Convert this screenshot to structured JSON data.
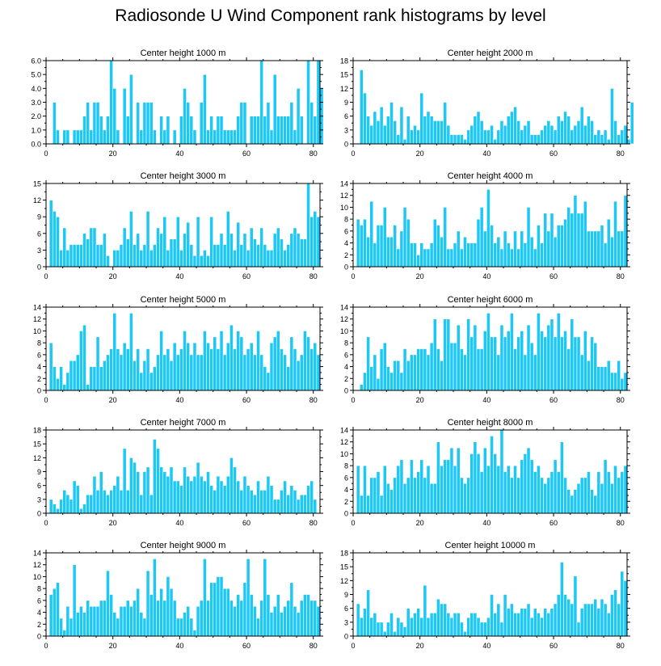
{
  "title": "Radiosonde U Wind Component rank histograms by level",
  "colors": {
    "bar": "#1ec8f5",
    "bar_edge": "#ffffff",
    "axis": "#000000",
    "background": "#ffffff"
  },
  "chart_data": [
    {
      "type": "bar",
      "title": "Center height 1000 m",
      "xlabel": "",
      "ylabel": "",
      "xlim": [
        0,
        82
      ],
      "xticks": [
        0,
        20,
        40,
        60,
        80
      ],
      "ylim": [
        0,
        6
      ],
      "yticks": [
        0,
        1,
        2,
        3,
        4,
        5,
        6
      ],
      "ytick_labels": [
        "0.0",
        "1.0",
        "2.0",
        "3.0",
        "4.0",
        "5.0",
        "6.0"
      ],
      "values": [
        0,
        0,
        3,
        1,
        0,
        1,
        1,
        0,
        1,
        1,
        1,
        2,
        3,
        1,
        3,
        3,
        2,
        1,
        2,
        6,
        4,
        1,
        0,
        4,
        2,
        5,
        0,
        3,
        1,
        3,
        3,
        3,
        1,
        0,
        2,
        1,
        2,
        0,
        1,
        0,
        2,
        4,
        3,
        2,
        1,
        0,
        3,
        5,
        1,
        2,
        1,
        2,
        2,
        1,
        1,
        1,
        1,
        2,
        3,
        3,
        0,
        2,
        2,
        2,
        6,
        2,
        3,
        1,
        5,
        2,
        2,
        2,
        2,
        3,
        1,
        4,
        2,
        0,
        6,
        3,
        2,
        6,
        4
      ]
    },
    {
      "type": "bar",
      "title": "Center height 2000 m",
      "xlabel": "",
      "ylabel": "",
      "xlim": [
        0,
        82
      ],
      "xticks": [
        0,
        20,
        40,
        60,
        80
      ],
      "ylim": [
        0,
        18
      ],
      "yticks": [
        0,
        3,
        6,
        9,
        12,
        15,
        18
      ],
      "ytick_labels": [
        "0",
        "3",
        "6",
        "9",
        "12",
        "15",
        "18"
      ],
      "values": [
        0,
        0,
        16,
        11,
        6,
        4,
        7,
        5,
        8,
        4,
        6,
        9,
        5,
        2,
        8,
        1,
        6,
        3,
        4,
        3,
        11,
        6,
        7,
        6,
        5,
        5,
        5,
        9,
        4,
        2,
        2,
        2,
        2,
        1,
        3,
        4,
        6,
        7,
        5,
        3,
        3,
        4,
        1,
        3,
        5,
        4,
        6,
        7,
        8,
        5,
        3,
        4,
        5,
        2,
        2,
        2,
        3,
        4,
        5,
        4,
        3,
        6,
        5,
        7,
        6,
        3,
        4,
        5,
        8,
        4,
        6,
        5,
        2,
        3,
        2,
        3,
        1,
        12,
        5,
        2,
        3,
        4,
        1,
        9
      ]
    },
    {
      "type": "bar",
      "title": "Center height 3000 m",
      "xlabel": "",
      "ylabel": "",
      "xlim": [
        0,
        82
      ],
      "xticks": [
        0,
        20,
        40,
        60,
        80
      ],
      "ylim": [
        0,
        15
      ],
      "yticks": [
        0,
        3,
        6,
        9,
        12,
        15
      ],
      "ytick_labels": [
        "0",
        "3",
        "6",
        "9",
        "12",
        "15"
      ],
      "values": [
        0,
        12,
        10,
        9,
        3,
        7,
        3,
        4,
        4,
        4,
        4,
        6,
        5,
        7,
        7,
        4,
        4,
        6,
        2,
        0,
        3,
        3,
        4,
        7,
        5,
        10,
        4,
        6,
        3,
        4,
        10,
        3,
        4,
        7,
        6,
        9,
        3,
        5,
        5,
        9,
        3,
        6,
        8,
        4,
        2,
        9,
        2,
        3,
        2,
        9,
        4,
        4,
        6,
        4,
        10,
        6,
        3,
        8,
        4,
        6,
        3,
        7,
        5,
        4,
        7,
        4,
        3,
        3,
        6,
        7,
        5,
        3,
        4,
        6,
        7,
        6,
        5,
        5,
        15,
        9,
        10,
        9
      ]
    },
    {
      "type": "bar",
      "title": "Center height 4000 m",
      "xlabel": "",
      "ylabel": "",
      "xlim": [
        0,
        82
      ],
      "xticks": [
        0,
        20,
        40,
        60,
        80
      ],
      "ylim": [
        0,
        14
      ],
      "yticks": [
        0,
        2,
        4,
        6,
        8,
        10,
        12,
        14
      ],
      "ytick_labels": [
        "0",
        "2",
        "4",
        "6",
        "8",
        "10",
        "12",
        "14"
      ],
      "values": [
        0,
        8,
        7,
        8,
        5,
        11,
        4,
        7,
        7,
        10,
        5,
        5,
        7,
        3,
        6,
        10,
        8,
        4,
        4,
        2,
        4,
        3,
        3,
        4,
        8,
        7,
        5,
        10,
        3,
        3,
        4,
        6,
        3,
        5,
        4,
        4,
        4,
        8,
        10,
        6,
        13,
        7,
        4,
        5,
        3,
        6,
        4,
        3,
        6,
        3,
        6,
        4,
        10,
        5,
        3,
        7,
        4,
        9,
        6,
        9,
        5,
        7,
        7,
        8,
        10,
        9,
        12,
        9,
        9,
        11,
        6,
        6,
        6,
        6,
        7,
        4,
        8,
        5,
        11,
        6,
        6,
        12
      ]
    },
    {
      "type": "bar",
      "title": "Center height 5000 m",
      "xlabel": "",
      "ylabel": "",
      "xlim": [
        0,
        82
      ],
      "xticks": [
        0,
        20,
        40,
        60,
        80
      ],
      "ylim": [
        0,
        14
      ],
      "yticks": [
        0,
        2,
        4,
        6,
        8,
        10,
        12,
        14
      ],
      "ytick_labels": [
        "0",
        "2",
        "4",
        "6",
        "8",
        "10",
        "12",
        "14"
      ],
      "values": [
        0,
        8,
        4,
        2,
        4,
        1,
        3,
        5,
        5,
        6,
        10,
        11,
        1,
        4,
        4,
        9,
        4,
        5,
        6,
        7,
        13,
        7,
        6,
        8,
        7,
        13,
        5,
        7,
        3,
        5,
        7,
        3,
        4,
        6,
        10,
        6,
        7,
        5,
        8,
        6,
        7,
        10,
        8,
        6,
        8,
        6,
        6,
        10,
        8,
        7,
        9,
        7,
        10,
        6,
        8,
        11,
        7,
        10,
        9,
        6,
        7,
        8,
        6,
        10,
        6,
        4,
        3,
        8,
        9,
        10,
        7,
        6,
        4,
        9,
        7,
        5,
        6,
        10,
        9,
        7,
        8,
        6
      ]
    },
    {
      "type": "bar",
      "title": "Center height 6000 m",
      "xlabel": "",
      "ylabel": "",
      "xlim": [
        0,
        82
      ],
      "xticks": [
        0,
        20,
        40,
        60,
        80
      ],
      "ylim": [
        0,
        14
      ],
      "yticks": [
        0,
        2,
        4,
        6,
        8,
        10,
        12,
        14
      ],
      "ytick_labels": [
        "0",
        "2",
        "4",
        "6",
        "8",
        "10",
        "12",
        "14"
      ],
      "values": [
        0,
        0,
        1,
        3,
        9,
        4,
        6,
        2,
        7,
        8,
        4,
        3,
        5,
        5,
        3,
        7,
        5,
        6,
        6,
        7,
        7,
        7,
        6,
        8,
        12,
        7,
        5,
        12,
        12,
        8,
        8,
        11,
        7,
        6,
        12,
        9,
        11,
        7,
        7,
        10,
        13,
        9,
        9,
        6,
        11,
        9,
        10,
        13,
        7,
        9,
        10,
        6,
        11,
        8,
        6,
        13,
        10,
        9,
        11,
        12,
        9,
        13,
        9,
        10,
        7,
        12,
        9,
        9,
        6,
        10,
        5,
        9,
        8,
        4,
        4,
        4,
        5,
        3,
        3,
        5,
        2,
        3
      ]
    },
    {
      "type": "bar",
      "title": "Center height 7000 m",
      "xlabel": "",
      "ylabel": "",
      "xlim": [
        0,
        82
      ],
      "xticks": [
        0,
        20,
        40,
        60,
        80
      ],
      "ylim": [
        0,
        18
      ],
      "yticks": [
        0,
        3,
        6,
        9,
        12,
        15,
        18
      ],
      "ytick_labels": [
        "0",
        "3",
        "6",
        "9",
        "12",
        "15",
        "18"
      ],
      "values": [
        0,
        3,
        2,
        1,
        3,
        5,
        4,
        3,
        7,
        6,
        1,
        2,
        4,
        4,
        8,
        5,
        9,
        5,
        4,
        5,
        6,
        8,
        5,
        14,
        5,
        12,
        11,
        9,
        4,
        9,
        10,
        4,
        16,
        14,
        10,
        9,
        8,
        10,
        7,
        7,
        6,
        10,
        8,
        7,
        8,
        11,
        8,
        7,
        9,
        6,
        5,
        8,
        7,
        6,
        8,
        12,
        10,
        7,
        5,
        8,
        6,
        5,
        4,
        7,
        5,
        5,
        8,
        6,
        3,
        3,
        5,
        7,
        4,
        6,
        5,
        3,
        4,
        4,
        6,
        7,
        3
      ]
    },
    {
      "type": "bar",
      "title": "Center height 8000 m",
      "xlabel": "",
      "ylabel": "",
      "xlim": [
        0,
        82
      ],
      "xticks": [
        0,
        20,
        40,
        60,
        80
      ],
      "ylim": [
        0,
        14
      ],
      "yticks": [
        0,
        2,
        4,
        6,
        8,
        10,
        12,
        14
      ],
      "ytick_labels": [
        "0",
        "2",
        "4",
        "6",
        "8",
        "10",
        "12",
        "14"
      ],
      "values": [
        0,
        8,
        3,
        8,
        3,
        6,
        6,
        7,
        3,
        8,
        5,
        4,
        6,
        8,
        9,
        5,
        6,
        9,
        6,
        7,
        9,
        6,
        8,
        5,
        5,
        12,
        8,
        9,
        9,
        11,
        8,
        11,
        6,
        5,
        6,
        10,
        12,
        10,
        7,
        11,
        8,
        13,
        10,
        8,
        14,
        7,
        8,
        6,
        8,
        6,
        9,
        10,
        11,
        9,
        7,
        8,
        6,
        5,
        6,
        7,
        9,
        7,
        12,
        6,
        4,
        3,
        4,
        5,
        6,
        6,
        7,
        4,
        3,
        7,
        5,
        9,
        7,
        5,
        8,
        6,
        7,
        8
      ]
    },
    {
      "type": "bar",
      "title": "Center height 9000 m",
      "xlabel": "",
      "ylabel": "",
      "xlim": [
        0,
        82
      ],
      "xticks": [
        0,
        20,
        40,
        60,
        80
      ],
      "ylim": [
        0,
        14
      ],
      "yticks": [
        0,
        2,
        4,
        6,
        8,
        10,
        12,
        14
      ],
      "ytick_labels": [
        "0",
        "2",
        "4",
        "6",
        "8",
        "10",
        "12",
        "14"
      ],
      "values": [
        0,
        7,
        8,
        9,
        3,
        1,
        5,
        3,
        12,
        4,
        5,
        4,
        6,
        5,
        5,
        5,
        6,
        6,
        11,
        7,
        4,
        3,
        5,
        5,
        6,
        5,
        6,
        8,
        4,
        3,
        11,
        7,
        13,
        6,
        8,
        6,
        10,
        8,
        6,
        3,
        3,
        4,
        5,
        3,
        1,
        5,
        6,
        13,
        6,
        9,
        9,
        10,
        10,
        8,
        8,
        6,
        5,
        7,
        6,
        9,
        13,
        7,
        5,
        3,
        6,
        13,
        7,
        4,
        5,
        7,
        4,
        5,
        6,
        9,
        5,
        4,
        6,
        7,
        7,
        6,
        6,
        5
      ]
    },
    {
      "type": "bar",
      "title": "Center height 10000 m",
      "xlabel": "",
      "ylabel": "",
      "xlim": [
        0,
        82
      ],
      "xticks": [
        0,
        20,
        40,
        60,
        80
      ],
      "ylim": [
        0,
        18
      ],
      "yticks": [
        0,
        3,
        6,
        9,
        12,
        15,
        18
      ],
      "ytick_labels": [
        "0",
        "3",
        "6",
        "9",
        "12",
        "15",
        "18"
      ],
      "values": [
        0,
        7,
        4,
        6,
        10,
        4,
        5,
        3,
        3,
        1,
        3,
        5,
        1,
        4,
        3,
        2,
        6,
        4,
        5,
        6,
        4,
        11,
        4,
        5,
        5,
        8,
        7,
        7,
        5,
        4,
        5,
        5,
        3,
        1,
        4,
        5,
        5,
        4,
        3,
        3,
        4,
        9,
        5,
        7,
        3,
        9,
        6,
        7,
        5,
        5,
        6,
        6,
        7,
        4,
        6,
        5,
        4,
        6,
        5,
        6,
        7,
        9,
        16,
        9,
        8,
        7,
        13,
        3,
        6,
        7,
        7,
        7,
        8,
        6,
        8,
        7,
        5,
        9,
        10,
        7,
        14,
        12
      ]
    }
  ]
}
